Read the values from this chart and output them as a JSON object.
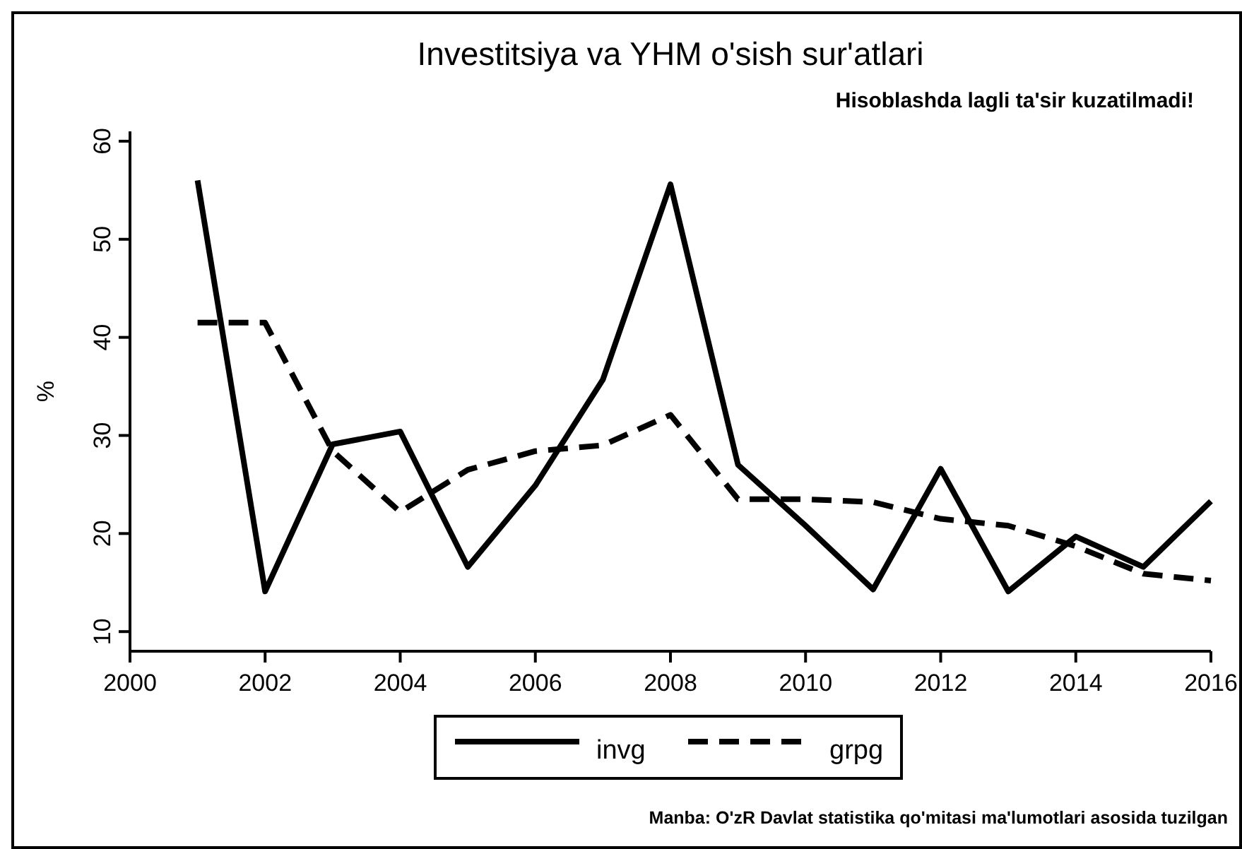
{
  "chart_data": {
    "type": "line",
    "title": "Investitsiya va YHM o'sish sur'atlari",
    "subtitle": "Hisoblashda lagli ta'sir kuzatilmadi!",
    "ylabel": "%",
    "annotations": [
      "Manba: O'zR Davlat statistika qo'mitasi ma'lumotlari asosida tuzilgan"
    ],
    "x": [
      2001,
      2002,
      2003,
      2004,
      2005,
      2006,
      2007,
      2008,
      2009,
      2010,
      2011,
      2012,
      2013,
      2014,
      2015,
      2016
    ],
    "series": [
      {
        "name": "invg",
        "color": "#000000",
        "line_style": "solid",
        "values": [
          56,
          14.1,
          29.1,
          30.4,
          16.6,
          24.9,
          35.7,
          55.6,
          27,
          20.8,
          14.3,
          26.6,
          14.1,
          19.7,
          16.6,
          23.3
        ]
      },
      {
        "name": "grpg",
        "color": "#000000",
        "line_style": "dashed",
        "values": [
          41.5,
          41.5,
          28.4,
          22.2,
          26.5,
          28.4,
          29,
          32.1,
          23.5,
          23.5,
          23.2,
          21.5,
          20.8,
          18.7,
          15.9,
          15.2
        ]
      }
    ],
    "xlim": [
      2000,
      2016
    ],
    "xticks": [
      2000,
      2002,
      2004,
      2006,
      2008,
      2010,
      2012,
      2014,
      2016
    ],
    "ylim": [
      8,
      61
    ],
    "yticks": [
      10,
      20,
      30,
      40,
      50,
      60
    ],
    "grid": false,
    "legend": "bottom",
    "marker": "none"
  }
}
